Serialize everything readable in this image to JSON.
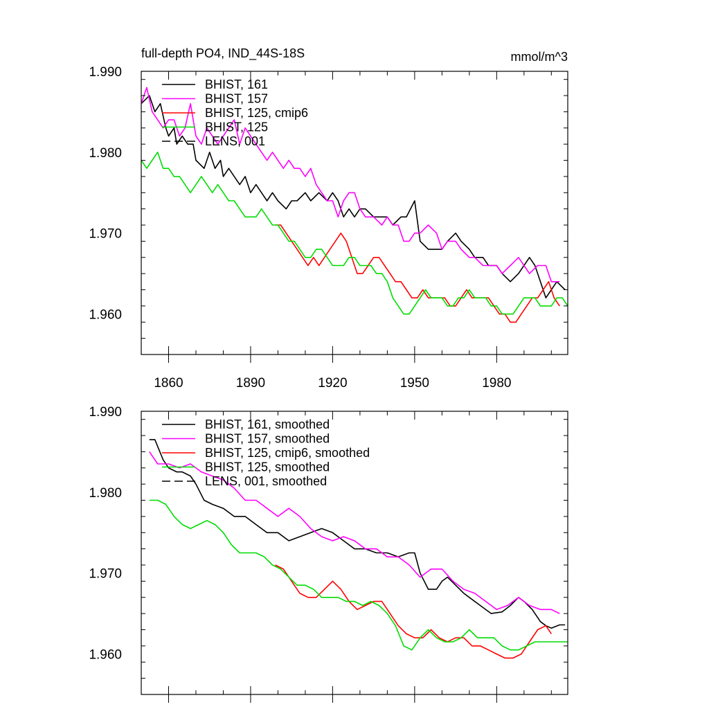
{
  "chart_data": [
    {
      "type": "line",
      "title": "full-depth PO4, IND_44S-18S",
      "units": "mmol/m^3",
      "xlim": [
        1850,
        2006
      ],
      "ylim": [
        1.955,
        1.99
      ],
      "xticks": [
        1860,
        1890,
        1920,
        1950,
        1980
      ],
      "xtick_labels": [
        "1860",
        "1890",
        "1920",
        "1950",
        "1980"
      ],
      "yticks": [
        1.96,
        1.97,
        1.98,
        1.99
      ],
      "ytick_labels": [
        "1.960",
        "1.970",
        "1.980",
        "1.990"
      ],
      "legend_position": "top-left",
      "series": [
        {
          "name": "BHIST, 161",
          "color": "#000000",
          "dash": "solid",
          "x": [
            1850,
            1853,
            1855,
            1857,
            1859,
            1860,
            1862,
            1863,
            1865,
            1867,
            1869,
            1870,
            1873,
            1875,
            1877,
            1879,
            1880,
            1882,
            1884,
            1886,
            1888,
            1890,
            1892,
            1894,
            1896,
            1898,
            1900,
            1903,
            1905,
            1907,
            1910,
            1912,
            1915,
            1918,
            1920,
            1922,
            1924,
            1926,
            1928,
            1930,
            1932,
            1935,
            1938,
            1940,
            1942,
            1945,
            1947,
            1950,
            1952,
            1955,
            1957,
            1960,
            1962,
            1965,
            1967,
            1970,
            1972,
            1975,
            1977,
            1980,
            1982,
            1985,
            1988,
            1990,
            1992,
            1994,
            1996,
            1998,
            2000,
            2002,
            2005
          ],
          "values": [
            1.986,
            1.987,
            1.985,
            1.986,
            1.983,
            1.982,
            1.983,
            1.981,
            1.982,
            1.981,
            1.981,
            1.979,
            1.978,
            1.98,
            1.978,
            1.979,
            1.977,
            1.978,
            1.977,
            1.976,
            1.977,
            1.975,
            1.976,
            1.975,
            1.974,
            1.975,
            1.974,
            1.973,
            1.974,
            1.974,
            1.975,
            1.974,
            1.975,
            1.974,
            1.975,
            1.974,
            1.972,
            1.973,
            1.972,
            1.973,
            1.973,
            1.972,
            1.972,
            1.972,
            1.971,
            1.972,
            1.972,
            1.974,
            1.969,
            1.968,
            1.968,
            1.968,
            1.969,
            1.97,
            1.969,
            1.968,
            1.967,
            1.967,
            1.966,
            1.966,
            1.965,
            1.964,
            1.965,
            1.966,
            1.967,
            1.966,
            1.964,
            1.962,
            1.963,
            1.964,
            1.963
          ]
        },
        {
          "name": "BHIST, 157",
          "color": "#ff00ff",
          "dash": "solid",
          "x": [
            1850,
            1852,
            1854,
            1856,
            1858,
            1860,
            1862,
            1864,
            1866,
            1868,
            1870,
            1872,
            1874,
            1876,
            1878,
            1880,
            1882,
            1884,
            1886,
            1888,
            1890,
            1892,
            1894,
            1896,
            1898,
            1900,
            1902,
            1904,
            1906,
            1908,
            1910,
            1912,
            1914,
            1916,
            1918,
            1920,
            1922,
            1924,
            1926,
            1928,
            1930,
            1932,
            1935,
            1938,
            1940,
            1942,
            1944,
            1946,
            1948,
            1950,
            1952,
            1955,
            1958,
            1960,
            1962,
            1965,
            1967,
            1970,
            1972,
            1975,
            1978,
            1980,
            1982,
            1985,
            1988,
            1990,
            1992,
            1995,
            1998,
            2000,
            2003
          ],
          "values": [
            1.986,
            1.988,
            1.985,
            1.984,
            1.983,
            1.984,
            1.984,
            1.982,
            1.983,
            1.986,
            1.982,
            1.981,
            1.983,
            1.982,
            1.981,
            1.982,
            1.983,
            1.984,
            1.981,
            1.983,
            1.982,
            1.981,
            1.98,
            1.979,
            1.98,
            1.979,
            1.978,
            1.979,
            1.978,
            1.978,
            1.977,
            1.978,
            1.976,
            1.975,
            1.974,
            1.974,
            1.972,
            1.974,
            1.975,
            1.975,
            1.973,
            1.972,
            1.972,
            1.971,
            1.972,
            1.971,
            1.971,
            1.969,
            1.969,
            1.97,
            1.97,
            1.971,
            1.97,
            1.968,
            1.969,
            1.969,
            1.968,
            1.967,
            1.967,
            1.966,
            1.966,
            1.966,
            1.965,
            1.966,
            1.967,
            1.966,
            1.965,
            1.966,
            1.966,
            1.964,
            1.964
          ]
        },
        {
          "name": "BHIST, 125, cmip6",
          "color": "#ff0000",
          "dash": "solid",
          "x": [
            1899,
            1901,
            1903,
            1905,
            1907,
            1909,
            1911,
            1913,
            1915,
            1917,
            1919,
            1921,
            1923,
            1925,
            1927,
            1929,
            1931,
            1933,
            1935,
            1937,
            1939,
            1941,
            1943,
            1945,
            1947,
            1949,
            1951,
            1953,
            1955,
            1957,
            1959,
            1961,
            1963,
            1965,
            1967,
            1969,
            1971,
            1973,
            1975,
            1977,
            1979,
            1981,
            1983,
            1985,
            1987,
            1989,
            1991,
            1993,
            1995,
            1997,
            1999,
            2001,
            2003
          ],
          "values": [
            1.971,
            1.971,
            1.97,
            1.969,
            1.968,
            1.967,
            1.966,
            1.967,
            1.966,
            1.967,
            1.968,
            1.969,
            1.97,
            1.969,
            1.967,
            1.965,
            1.965,
            1.966,
            1.967,
            1.967,
            1.966,
            1.965,
            1.964,
            1.964,
            1.963,
            1.962,
            1.962,
            1.963,
            1.962,
            1.962,
            1.962,
            1.962,
            1.961,
            1.961,
            1.962,
            1.963,
            1.962,
            1.962,
            1.962,
            1.962,
            1.961,
            1.96,
            1.96,
            1.959,
            1.959,
            1.96,
            1.961,
            1.962,
            1.962,
            1.963,
            1.964,
            1.962,
            1.961
          ]
        },
        {
          "name": "BHIST, 125",
          "color": "#00dd00",
          "dash": "solid",
          "x": [
            1850,
            1852,
            1854,
            1856,
            1858,
            1860,
            1862,
            1864,
            1866,
            1868,
            1870,
            1872,
            1874,
            1876,
            1878,
            1880,
            1882,
            1884,
            1886,
            1888,
            1890,
            1892,
            1894,
            1896,
            1898,
            1900,
            1902,
            1904,
            1906,
            1908,
            1910,
            1912,
            1914,
            1916,
            1918,
            1920,
            1922,
            1924,
            1926,
            1928,
            1930,
            1932,
            1934,
            1936,
            1938,
            1940,
            1942,
            1944,
            1946,
            1948,
            1950,
            1952,
            1954,
            1956,
            1958,
            1960,
            1962,
            1964,
            1966,
            1968,
            1970,
            1972,
            1974,
            1976,
            1978,
            1980,
            1982,
            1984,
            1986,
            1988,
            1990,
            1992,
            1994,
            1996,
            1998,
            2000,
            2002,
            2004,
            2006
          ],
          "values": [
            1.979,
            1.978,
            1.979,
            1.98,
            1.978,
            1.978,
            1.977,
            1.977,
            1.976,
            1.975,
            1.976,
            1.977,
            1.976,
            1.975,
            1.976,
            1.975,
            1.974,
            1.974,
            1.973,
            1.972,
            1.972,
            1.972,
            1.973,
            1.972,
            1.971,
            1.971,
            1.97,
            1.969,
            1.969,
            1.968,
            1.967,
            1.967,
            1.968,
            1.968,
            1.967,
            1.966,
            1.966,
            1.966,
            1.967,
            1.967,
            1.966,
            1.966,
            1.966,
            1.965,
            1.965,
            1.964,
            1.962,
            1.961,
            1.96,
            1.96,
            1.961,
            1.962,
            1.963,
            1.962,
            1.962,
            1.962,
            1.961,
            1.961,
            1.962,
            1.962,
            1.963,
            1.962,
            1.962,
            1.962,
            1.961,
            1.961,
            1.96,
            1.96,
            1.96,
            1.961,
            1.962,
            1.962,
            1.962,
            1.961,
            1.961,
            1.961,
            1.962,
            1.962,
            1.961
          ]
        },
        {
          "name": "LENS, 001",
          "color": "#000000",
          "dash": "dashed",
          "x": [],
          "values": []
        }
      ]
    },
    {
      "type": "line",
      "title": "",
      "units": "",
      "xlim": [
        1850,
        2006
      ],
      "ylim": [
        1.955,
        1.99
      ],
      "xticks": [
        1860,
        1890,
        1920,
        1950,
        1980
      ],
      "xtick_labels": [],
      "yticks": [
        1.96,
        1.97,
        1.98,
        1.99
      ],
      "ytick_labels": [
        "1.960",
        "1.970",
        "1.980",
        "1.990"
      ],
      "legend_position": "top-left",
      "series": [
        {
          "name": "BHIST, 161, smoothed",
          "color": "#000000",
          "dash": "solid",
          "x": [
            1853,
            1855,
            1858,
            1860,
            1863,
            1865,
            1868,
            1870,
            1873,
            1876,
            1880,
            1884,
            1888,
            1892,
            1896,
            1900,
            1904,
            1908,
            1912,
            1916,
            1920,
            1924,
            1928,
            1932,
            1936,
            1940,
            1944,
            1948,
            1950,
            1952,
            1955,
            1958,
            1960,
            1962,
            1965,
            1968,
            1970,
            1974,
            1978,
            1982,
            1985,
            1988,
            1990,
            1993,
            1996,
            1998,
            2000,
            2003,
            2005
          ],
          "values": [
            1.9865,
            1.9865,
            1.984,
            1.983,
            1.9825,
            1.9825,
            1.982,
            1.981,
            1.979,
            1.9785,
            1.978,
            1.977,
            1.977,
            1.976,
            1.975,
            1.975,
            1.974,
            1.9745,
            1.975,
            1.9755,
            1.975,
            1.974,
            1.973,
            1.973,
            1.9725,
            1.9725,
            1.972,
            1.9725,
            1.9725,
            1.97,
            1.968,
            1.968,
            1.969,
            1.9695,
            1.9685,
            1.9675,
            1.967,
            1.966,
            1.965,
            1.9652,
            1.966,
            1.967,
            1.9665,
            1.9655,
            1.964,
            1.9635,
            1.9632,
            1.9636,
            1.9636
          ]
        },
        {
          "name": "BHIST, 157, smoothed",
          "color": "#ff00ff",
          "dash": "solid",
          "x": [
            1853,
            1856,
            1860,
            1864,
            1868,
            1872,
            1876,
            1880,
            1884,
            1888,
            1892,
            1896,
            1900,
            1904,
            1908,
            1912,
            1916,
            1920,
            1924,
            1928,
            1932,
            1936,
            1940,
            1944,
            1948,
            1952,
            1956,
            1960,
            1964,
            1968,
            1972,
            1976,
            1980,
            1984,
            1988,
            1992,
            1996,
            2000,
            2003
          ],
          "values": [
            1.985,
            1.9835,
            1.9835,
            1.983,
            1.9835,
            1.9825,
            1.982,
            1.9815,
            1.9805,
            1.979,
            1.979,
            1.978,
            1.977,
            1.978,
            1.977,
            1.9755,
            1.9745,
            1.974,
            1.9745,
            1.974,
            1.973,
            1.973,
            1.972,
            1.972,
            1.971,
            1.9695,
            1.9705,
            1.9705,
            1.969,
            1.968,
            1.9675,
            1.9665,
            1.9655,
            1.966,
            1.967,
            1.966,
            1.9655,
            1.9655,
            1.965
          ]
        },
        {
          "name": "BHIST, 125, cmip6, smoothed",
          "color": "#ff0000",
          "dash": "solid",
          "x": [
            1899,
            1902,
            1905,
            1908,
            1911,
            1914,
            1917,
            1920,
            1923,
            1926,
            1929,
            1932,
            1935,
            1938,
            1941,
            1944,
            1947,
            1950,
            1953,
            1956,
            1959,
            1962,
            1965,
            1968,
            1971,
            1974,
            1977,
            1980,
            1983,
            1986,
            1989,
            1992,
            1995,
            1998,
            2000
          ],
          "values": [
            1.971,
            1.9705,
            1.969,
            1.9675,
            1.967,
            1.967,
            1.968,
            1.969,
            1.968,
            1.9665,
            1.9655,
            1.966,
            1.9665,
            1.9665,
            1.965,
            1.9635,
            1.9625,
            1.962,
            1.962,
            1.963,
            1.962,
            1.9615,
            1.962,
            1.962,
            1.961,
            1.961,
            1.9605,
            1.96,
            1.9595,
            1.9595,
            1.96,
            1.9615,
            1.963,
            1.9635,
            1.9625
          ]
        },
        {
          "name": "BHIST, 125, smoothed",
          "color": "#00dd00",
          "dash": "solid",
          "x": [
            1853,
            1856,
            1859,
            1862,
            1865,
            1868,
            1871,
            1874,
            1877,
            1880,
            1883,
            1886,
            1889,
            1892,
            1895,
            1898,
            1901,
            1904,
            1907,
            1910,
            1913,
            1916,
            1919,
            1922,
            1925,
            1928,
            1931,
            1934,
            1937,
            1940,
            1943,
            1946,
            1949,
            1952,
            1955,
            1958,
            1961,
            1964,
            1967,
            1970,
            1973,
            1976,
            1979,
            1982,
            1985,
            1988,
            1991,
            1994,
            1997,
            2000,
            2003,
            2006
          ],
          "values": [
            1.979,
            1.979,
            1.9785,
            1.977,
            1.976,
            1.9755,
            1.976,
            1.9765,
            1.976,
            1.975,
            1.9735,
            1.9725,
            1.9725,
            1.9725,
            1.972,
            1.971,
            1.9705,
            1.9695,
            1.9685,
            1.9685,
            1.968,
            1.967,
            1.967,
            1.967,
            1.9665,
            1.9665,
            1.966,
            1.9665,
            1.966,
            1.965,
            1.9635,
            1.961,
            1.9605,
            1.962,
            1.963,
            1.962,
            1.9615,
            1.9615,
            1.962,
            1.963,
            1.962,
            1.962,
            1.962,
            1.961,
            1.9605,
            1.9605,
            1.961,
            1.9615,
            1.9615,
            1.9615,
            1.9615,
            1.9615
          ]
        },
        {
          "name": "LENS, 001, smoothed",
          "color": "#000000",
          "dash": "dashed",
          "x": [],
          "values": []
        }
      ]
    }
  ]
}
